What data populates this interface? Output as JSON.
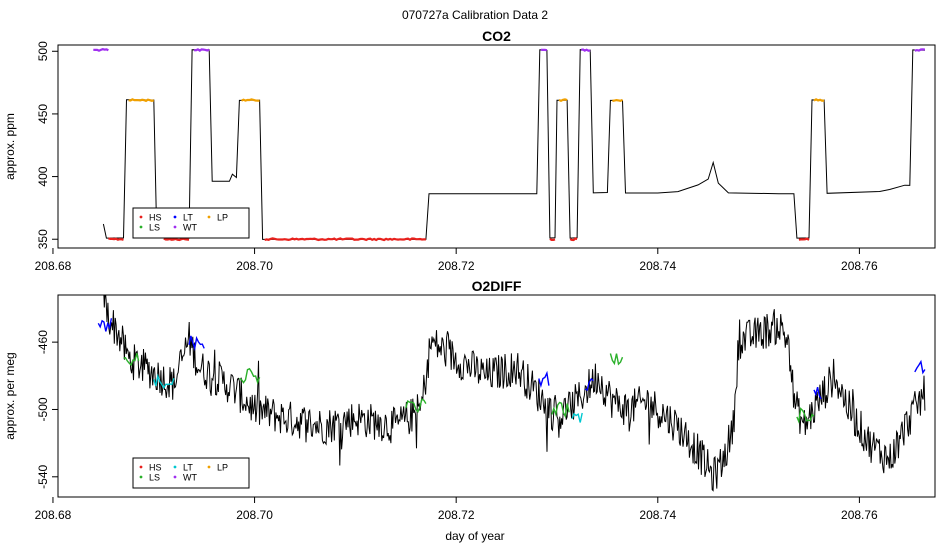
{
  "figure": {
    "supertitle": "070727a   Calibration Data 2",
    "xlabel": "day of year"
  },
  "colors": {
    "trace": "#000000",
    "HS": "#e8211d",
    "LS": "#2ab02a",
    "LT": "#0000ff",
    "WT": "#00c8d0",
    "LP": "#f0a000",
    "HP": "#a030f0"
  },
  "chart_data": [
    {
      "type": "line",
      "title": "CO2",
      "xlabel": "",
      "ylabel": "approx. ppm",
      "xlim": [
        208.6805,
        208.7675
      ],
      "ylim": [
        343,
        505
      ],
      "xticks": [
        208.68,
        208.7,
        208.72,
        208.74,
        208.76
      ],
      "xticklabels": [
        "208.68",
        "208.70",
        "208.72",
        "208.74",
        "208.76"
      ],
      "yticks": [
        350,
        400,
        450,
        500
      ],
      "yticklabels": [
        "350",
        "400",
        "450",
        "500"
      ],
      "grid": false,
      "legend": {
        "position": "bottom-left",
        "entries": [
          {
            "label": "HS",
            "color": "#e8211d"
          },
          {
            "label": "LT",
            "color": "#0000ff"
          },
          {
            "label": "LP",
            "color": "#f0a000"
          },
          {
            "label": "LS",
            "color": "#2ab02a"
          },
          {
            "label": "WT",
            "color": "#a030f0"
          }
        ]
      },
      "trace": [
        [
          208.685,
          362
        ],
        [
          208.6853,
          351
        ],
        [
          208.687,
          351
        ],
        [
          208.6873,
          461
        ],
        [
          208.69,
          461
        ],
        [
          208.6903,
          351
        ],
        [
          208.6935,
          351
        ],
        [
          208.6938,
          501
        ],
        [
          208.6955,
          501
        ],
        [
          208.6958,
          396
        ],
        [
          208.6975,
          396
        ],
        [
          208.6978,
          402
        ],
        [
          208.6982,
          399
        ],
        [
          208.6985,
          461
        ],
        [
          208.7005,
          461
        ],
        [
          208.7008,
          350
        ],
        [
          208.717,
          350
        ],
        [
          208.7173,
          386
        ],
        [
          208.728,
          386
        ],
        [
          208.7283,
          501
        ],
        [
          208.729,
          501
        ],
        [
          208.7293,
          351
        ],
        [
          208.7298,
          351
        ],
        [
          208.73,
          461
        ],
        [
          208.731,
          461
        ],
        [
          208.7313,
          351
        ],
        [
          208.732,
          351
        ],
        [
          208.7323,
          501
        ],
        [
          208.7333,
          501
        ],
        [
          208.7336,
          387
        ],
        [
          208.735,
          387
        ],
        [
          208.7353,
          461
        ],
        [
          208.7365,
          461
        ],
        [
          208.7368,
          387
        ],
        [
          208.74,
          387
        ],
        [
          208.742,
          388
        ],
        [
          208.744,
          393
        ],
        [
          208.745,
          398
        ],
        [
          208.7455,
          411
        ],
        [
          208.746,
          395
        ],
        [
          208.747,
          387
        ],
        [
          208.752,
          386
        ],
        [
          208.7535,
          386
        ],
        [
          208.7538,
          351
        ],
        [
          208.755,
          351
        ],
        [
          208.7553,
          461
        ],
        [
          208.7565,
          461
        ],
        [
          208.7568,
          387
        ],
        [
          208.762,
          388
        ],
        [
          208.763,
          390
        ],
        [
          208.7645,
          393
        ],
        [
          208.765,
          393
        ],
        [
          208.7653,
          501
        ],
        [
          208.7665,
          501
        ]
      ],
      "highlights": [
        {
          "label": "HP",
          "color": "#a030f0",
          "x": [
            208.684,
            208.6855
          ],
          "y": 501
        },
        {
          "label": "HS",
          "color": "#e8211d",
          "x": [
            208.6855,
            208.687
          ],
          "y": 350
        },
        {
          "label": "LP",
          "color": "#f0a000",
          "x": [
            208.6875,
            208.69
          ],
          "y": 461
        },
        {
          "label": "HS",
          "color": "#e8211d",
          "x": [
            208.691,
            208.6935
          ],
          "y": 350
        },
        {
          "label": "HP",
          "color": "#a030f0",
          "x": [
            208.694,
            208.6955
          ],
          "y": 501
        },
        {
          "label": "LP",
          "color": "#f0a000",
          "x": [
            208.6987,
            208.7005
          ],
          "y": 461
        },
        {
          "label": "HS",
          "color": "#e8211d",
          "x": [
            208.701,
            208.717
          ],
          "y": 350
        },
        {
          "label": "HP",
          "color": "#a030f0",
          "x": [
            208.7284,
            208.729
          ],
          "y": 501
        },
        {
          "label": "HS",
          "color": "#e8211d",
          "x": [
            208.7293,
            208.7298
          ],
          "y": 350
        },
        {
          "label": "LP",
          "color": "#f0a000",
          "x": [
            208.7302,
            208.731
          ],
          "y": 461
        },
        {
          "label": "HS",
          "color": "#e8211d",
          "x": [
            208.7313,
            208.732
          ],
          "y": 350
        },
        {
          "label": "HP",
          "color": "#a030f0",
          "x": [
            208.7324,
            208.7333
          ],
          "y": 501
        },
        {
          "label": "LP",
          "color": "#f0a000",
          "x": [
            208.7355,
            208.7365
          ],
          "y": 461
        },
        {
          "label": "HS",
          "color": "#e8211d",
          "x": [
            208.754,
            208.755
          ],
          "y": 350
        },
        {
          "label": "LP",
          "color": "#f0a000",
          "x": [
            208.7555,
            208.7565
          ],
          "y": 461
        },
        {
          "label": "HP",
          "color": "#a030f0",
          "x": [
            208.7655,
            208.7665
          ],
          "y": 501
        }
      ]
    },
    {
      "type": "line",
      "title": "O2DIFF",
      "xlabel": "day of year",
      "ylabel": "approx. per meg",
      "xlim": [
        208.6805,
        208.7675
      ],
      "ylim": [
        -552,
        -432
      ],
      "xticks": [
        208.68,
        208.7,
        208.72,
        208.74,
        208.76
      ],
      "xticklabels": [
        "208.68",
        "208.70",
        "208.72",
        "208.74",
        "208.76"
      ],
      "yticks": [
        -460,
        -500,
        -540
      ],
      "yticklabels": [
        "-460",
        "-500",
        "-540"
      ],
      "grid": false,
      "legend": {
        "position": "bottom-left",
        "entries": [
          {
            "label": "HS",
            "color": "#e8211d"
          },
          {
            "label": "LT",
            "color": "#00c8d0"
          },
          {
            "label": "LP",
            "color": "#f0a000"
          },
          {
            "label": "LS",
            "color": "#2ab02a"
          },
          {
            "label": "WT",
            "color": "#a030f0"
          }
        ]
      },
      "trace_anchors": [
        [
          208.685,
          -432
        ],
        [
          208.6855,
          -445
        ],
        [
          208.6865,
          -455
        ],
        [
          208.6875,
          -470
        ],
        [
          208.689,
          -475
        ],
        [
          208.6905,
          -480
        ],
        [
          208.692,
          -485
        ],
        [
          208.6935,
          -458
        ],
        [
          208.6945,
          -475
        ],
        [
          208.696,
          -480
        ],
        [
          208.698,
          -488
        ],
        [
          208.7,
          -500
        ],
        [
          208.703,
          -505
        ],
        [
          208.707,
          -510
        ],
        [
          208.71,
          -505
        ],
        [
          208.714,
          -510
        ],
        [
          208.7165,
          -500
        ],
        [
          208.7175,
          -460
        ],
        [
          208.72,
          -470
        ],
        [
          208.723,
          -480
        ],
        [
          208.726,
          -475
        ],
        [
          208.728,
          -490
        ],
        [
          208.73,
          -505
        ],
        [
          208.732,
          -495
        ],
        [
          208.734,
          -480
        ],
        [
          208.7355,
          -495
        ],
        [
          208.737,
          -500
        ],
        [
          208.739,
          -495
        ],
        [
          208.742,
          -510
        ],
        [
          208.744,
          -525
        ],
        [
          208.7455,
          -540
        ],
        [
          208.7465,
          -530
        ],
        [
          208.7475,
          -510
        ],
        [
          208.748,
          -460
        ],
        [
          208.75,
          -455
        ],
        [
          208.752,
          -450
        ],
        [
          208.753,
          -460
        ],
        [
          208.7535,
          -495
        ],
        [
          208.7545,
          -510
        ],
        [
          208.756,
          -495
        ],
        [
          208.7575,
          -480
        ],
        [
          208.759,
          -500
        ],
        [
          208.761,
          -520
        ],
        [
          208.763,
          -530
        ],
        [
          208.765,
          -505
        ],
        [
          208.7665,
          -490
        ]
      ],
      "trace_noise": 11,
      "highlights": [
        {
          "label": "LT",
          "color": "#0000ff",
          "x": [
            208.6845,
            208.6858
          ],
          "y": -450
        },
        {
          "label": "LS",
          "color": "#2ab02a",
          "x": [
            208.687,
            208.6885
          ],
          "y": -470
        },
        {
          "label": "WT",
          "color": "#00c8d0",
          "x": [
            208.69,
            208.692
          ],
          "y": -483
        },
        {
          "label": "LT",
          "color": "#0000ff",
          "x": [
            208.6935,
            208.695
          ],
          "y": -460
        },
        {
          "label": "LS",
          "color": "#2ab02a",
          "x": [
            208.6985,
            208.7005
          ],
          "y": -480
        },
        {
          "label": "LS",
          "color": "#2ab02a",
          "x": [
            208.715,
            208.717
          ],
          "y": -498
        },
        {
          "label": "LT",
          "color": "#0000ff",
          "x": [
            208.7282,
            208.7292
          ],
          "y": -482
        },
        {
          "label": "LS",
          "color": "#2ab02a",
          "x": [
            208.7295,
            208.7312
          ],
          "y": -500
        },
        {
          "label": "WT",
          "color": "#00c8d0",
          "x": [
            208.7315,
            208.7325
          ],
          "y": -505
        },
        {
          "label": "LT",
          "color": "#0000ff",
          "x": [
            208.7328,
            208.7336
          ],
          "y": -485
        },
        {
          "label": "LS",
          "color": "#2ab02a",
          "x": [
            208.7353,
            208.7365
          ],
          "y": -470
        },
        {
          "label": "LS",
          "color": "#2ab02a",
          "x": [
            208.7538,
            208.7555
          ],
          "y": -503
        },
        {
          "label": "LT",
          "color": "#0000ff",
          "x": [
            208.7555,
            208.7562
          ],
          "y": -490
        },
        {
          "label": "LT",
          "color": "#0000ff",
          "x": [
            208.7655,
            208.7665
          ],
          "y": -475
        }
      ]
    }
  ]
}
